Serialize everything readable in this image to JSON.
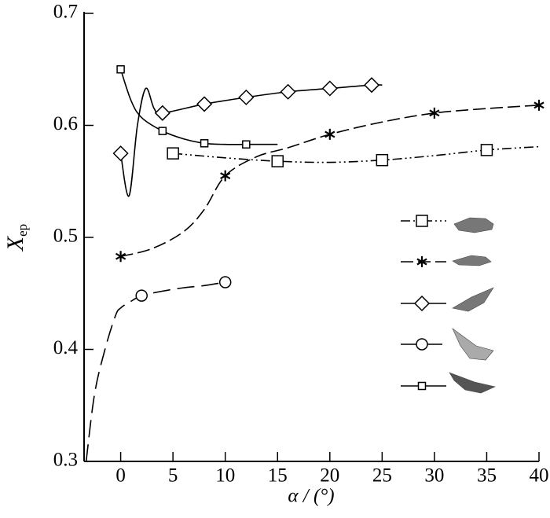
{
  "chart_data": {
    "type": "line",
    "xlabel": "α / (°)",
    "ylabel": "X",
    "ylabel_sub": "ep",
    "xlim": [
      -3.5,
      40
    ],
    "ylim": [
      0.3,
      0.7
    ],
    "xticks": [
      0,
      5,
      10,
      15,
      20,
      25,
      30,
      35,
      40
    ],
    "yticks": [
      0.3,
      0.4,
      0.5,
      0.6,
      0.7
    ],
    "grid": false,
    "series": [
      {
        "color": "#000000",
        "marker": "square",
        "dash": "dash-dot-dot",
        "x": [
          5,
          10,
          15,
          20,
          25,
          30,
          35,
          40
        ],
        "values": [
          0.575,
          0.571,
          0.568,
          0.567,
          0.569,
          0.573,
          0.578,
          0.581
        ],
        "marked": [
          true,
          false,
          true,
          false,
          true,
          false,
          true,
          false
        ]
      },
      {
        "color": "#000000",
        "marker": "asterisk",
        "dash": "dashed",
        "x": [
          0,
          3,
          6,
          8,
          10,
          13,
          16,
          20,
          25,
          30,
          35,
          40
        ],
        "values": [
          0.483,
          0.49,
          0.505,
          0.525,
          0.555,
          0.572,
          0.58,
          0.592,
          0.603,
          0.611,
          0.615,
          0.618
        ],
        "marked": [
          true,
          false,
          false,
          false,
          true,
          false,
          false,
          true,
          false,
          true,
          false,
          true
        ]
      },
      {
        "color": "#000000",
        "marker": "diamond",
        "dash": "solid",
        "x": [
          0,
          0.8,
          1.6,
          2.4,
          3.2,
          4,
          8,
          12,
          16,
          20,
          24,
          25
        ],
        "values": [
          0.575,
          0.537,
          0.6,
          0.633,
          0.615,
          0.611,
          0.619,
          0.625,
          0.63,
          0.633,
          0.636,
          0.636
        ],
        "marked": [
          true,
          false,
          false,
          false,
          false,
          true,
          true,
          true,
          true,
          true,
          true,
          false
        ]
      },
      {
        "color": "#000000",
        "marker": "circle",
        "dash": "long-dashed",
        "x": [
          -3.3,
          -2.5,
          -1.5,
          -0.5,
          0,
          1,
          2,
          4,
          6,
          8,
          10
        ],
        "values": [
          0.3,
          0.36,
          0.4,
          0.43,
          0.437,
          0.443,
          0.448,
          0.452,
          0.455,
          0.457,
          0.46
        ],
        "marked": [
          false,
          false,
          false,
          false,
          false,
          false,
          true,
          false,
          false,
          false,
          true
        ]
      },
      {
        "color": "#000000",
        "marker": "small-square",
        "dash": "solid",
        "x": [
          0,
          1,
          2,
          4,
          6,
          8,
          10,
          12,
          15
        ],
        "values": [
          0.65,
          0.622,
          0.607,
          0.595,
          0.588,
          0.584,
          0.583,
          0.583,
          0.583
        ],
        "marked": [
          true,
          false,
          false,
          true,
          false,
          true,
          false,
          true,
          false
        ]
      }
    ]
  }
}
